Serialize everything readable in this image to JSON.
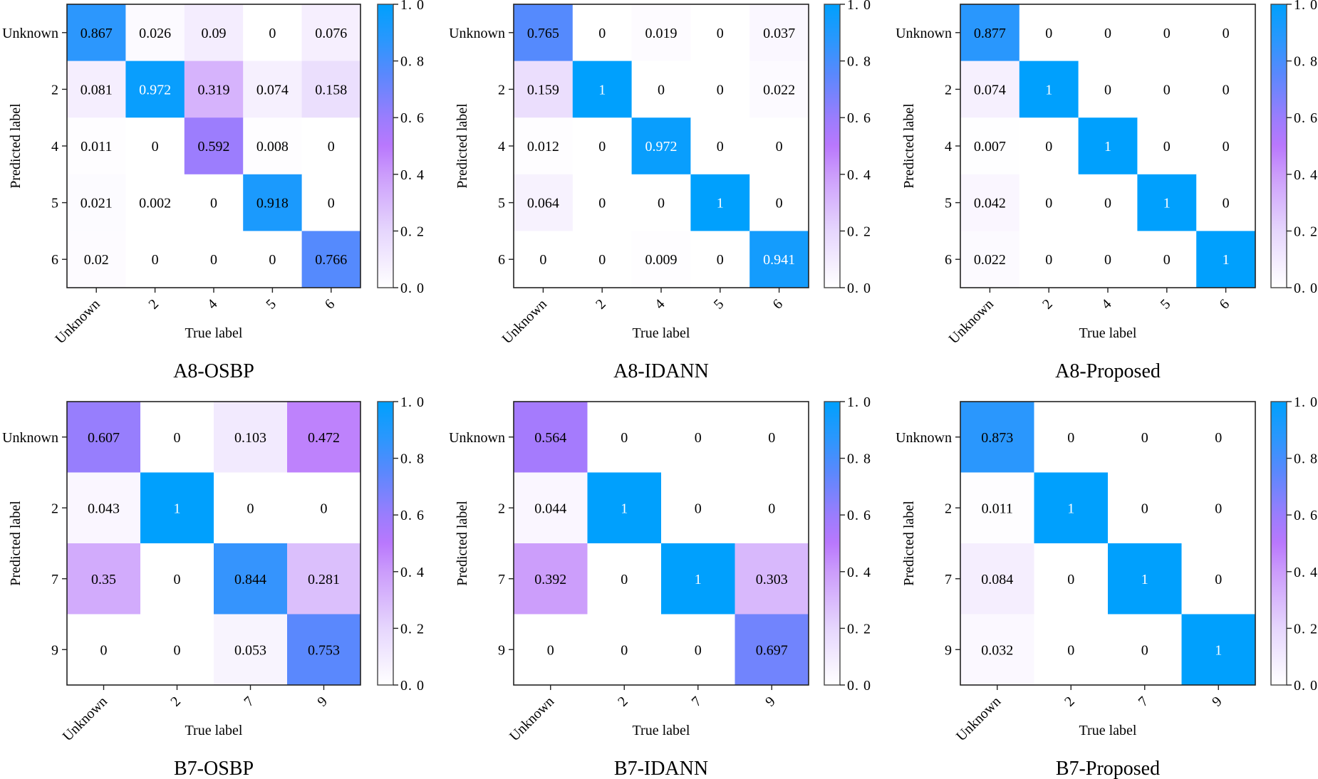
{
  "figure": {
    "colormap": {
      "stops": [
        {
          "v": 0.0,
          "color": "#ffffff"
        },
        {
          "v": 0.2,
          "color": "#e6d6fd"
        },
        {
          "v": 0.4,
          "color": "#cb9cfb"
        },
        {
          "v": 0.5,
          "color": "#b978fd"
        },
        {
          "v": 0.6,
          "color": "#9a7dfd"
        },
        {
          "v": 0.75,
          "color": "#5b88fd"
        },
        {
          "v": 0.87,
          "color": "#2b97fd"
        },
        {
          "v": 1.0,
          "color": "#00a0fd"
        }
      ],
      "light_text_threshold": 0.93,
      "light_text_color": "#ffffff",
      "dark_text_color": "#000000"
    }
  },
  "chart_data": [
    {
      "type": "heatmap",
      "title": "A8-OSBP",
      "xlabel": "True label",
      "ylabel": "Predicted label",
      "x_ticks": [
        "Unknown",
        "2",
        "4",
        "5",
        "6"
      ],
      "y_ticks": [
        "Unknown",
        "2",
        "4",
        "5",
        "6"
      ],
      "values": [
        [
          0.867,
          0.026,
          0.09,
          0,
          0.076
        ],
        [
          0.081,
          0.972,
          0.319,
          0.074,
          0.158
        ],
        [
          0.011,
          0,
          0.592,
          0.008,
          0
        ],
        [
          0.021,
          0.002,
          0,
          0.918,
          0
        ],
        [
          0.02,
          0,
          0,
          0,
          0.766
        ]
      ],
      "labels": [
        [
          "0.867",
          "0.026",
          "0.09",
          "0",
          "0.076"
        ],
        [
          "0.081",
          "0.972",
          "0.319",
          "0.074",
          "0.158"
        ],
        [
          "0.011",
          "0",
          "0.592",
          "0.008",
          "0"
        ],
        [
          "0.021",
          "0.002",
          "0",
          "0.918",
          "0"
        ],
        [
          "0.02",
          "0",
          "0",
          "0",
          "0.766"
        ]
      ],
      "colorbar": {
        "range": [
          0,
          1
        ],
        "ticks": [
          "0.0",
          "0.2",
          "0.4",
          "0.6",
          "0.8",
          "1.0"
        ]
      }
    },
    {
      "type": "heatmap",
      "title": "A8-IDANN",
      "xlabel": "True label",
      "ylabel": "Predicted label",
      "x_ticks": [
        "Unknown",
        "2",
        "4",
        "5",
        "6"
      ],
      "y_ticks": [
        "Unknown",
        "2",
        "4",
        "5",
        "6"
      ],
      "values": [
        [
          0.765,
          0,
          0.019,
          0,
          0.037
        ],
        [
          0.159,
          1,
          0,
          0,
          0.022
        ],
        [
          0.012,
          0,
          0.972,
          0,
          0
        ],
        [
          0.064,
          0,
          0,
          1,
          0
        ],
        [
          0,
          0,
          0.009,
          0,
          0.941
        ]
      ],
      "labels": [
        [
          "0.765",
          "0",
          "0.019",
          "0",
          "0.037"
        ],
        [
          "0.159",
          "1",
          "0",
          "0",
          "0.022"
        ],
        [
          "0.012",
          "0",
          "0.972",
          "0",
          "0"
        ],
        [
          "0.064",
          "0",
          "0",
          "1",
          "0"
        ],
        [
          "0",
          "0",
          "0.009",
          "0",
          "0.941"
        ]
      ],
      "colorbar": {
        "range": [
          0,
          1
        ],
        "ticks": [
          "0.0",
          "0.2",
          "0.4",
          "0.6",
          "0.8",
          "1.0"
        ]
      }
    },
    {
      "type": "heatmap",
      "title": "A8-Proposed",
      "xlabel": "True label",
      "ylabel": "Predicted label",
      "x_ticks": [
        "Unknown",
        "2",
        "4",
        "5",
        "6"
      ],
      "y_ticks": [
        "Unknown",
        "2",
        "4",
        "5",
        "6"
      ],
      "values": [
        [
          0.877,
          0,
          0,
          0,
          0
        ],
        [
          0.074,
          1,
          0,
          0,
          0
        ],
        [
          0.007,
          0,
          1,
          0,
          0
        ],
        [
          0.042,
          0,
          0,
          1,
          0
        ],
        [
          0.022,
          0,
          0,
          0,
          1
        ]
      ],
      "labels": [
        [
          "0.877",
          "0",
          "0",
          "0",
          "0"
        ],
        [
          "0.074",
          "1",
          "0",
          "0",
          "0"
        ],
        [
          "0.007",
          "0",
          "1",
          "0",
          "0"
        ],
        [
          "0.042",
          "0",
          "0",
          "1",
          "0"
        ],
        [
          "0.022",
          "0",
          "0",
          "0",
          "1"
        ]
      ],
      "colorbar": {
        "range": [
          0,
          1
        ],
        "ticks": [
          "0.0",
          "0.2",
          "0.4",
          "0.6",
          "0.8",
          "1.0"
        ]
      }
    },
    {
      "type": "heatmap",
      "title": "B7-OSBP",
      "xlabel": "True label",
      "ylabel": "Predicted label",
      "x_ticks": [
        "Unknown",
        "2",
        "7",
        "9"
      ],
      "y_ticks": [
        "Unknown",
        "2",
        "7",
        "9"
      ],
      "values": [
        [
          0.607,
          0,
          0.103,
          0.472
        ],
        [
          0.043,
          1,
          0,
          0
        ],
        [
          0.35,
          0,
          0.844,
          0.281
        ],
        [
          0,
          0,
          0.053,
          0.753
        ]
      ],
      "labels": [
        [
          "0.607",
          "0",
          "0.103",
          "0.472"
        ],
        [
          "0.043",
          "1",
          "0",
          "0"
        ],
        [
          "0.35",
          "0",
          "0.844",
          "0.281"
        ],
        [
          "0",
          "0",
          "0.053",
          "0.753"
        ]
      ],
      "colorbar": {
        "range": [
          0,
          1
        ],
        "ticks": [
          "0.0",
          "0.2",
          "0.4",
          "0.6",
          "0.8",
          "1.0"
        ]
      }
    },
    {
      "type": "heatmap",
      "title": "B7-IDANN",
      "xlabel": "True label",
      "ylabel": "Predicted label",
      "x_ticks": [
        "Unknown",
        "2",
        "7",
        "9"
      ],
      "y_ticks": [
        "Unknown",
        "2",
        "7",
        "9"
      ],
      "values": [
        [
          0.564,
          0,
          0,
          0
        ],
        [
          0.044,
          1,
          0,
          0
        ],
        [
          0.392,
          0,
          1,
          0.303
        ],
        [
          0,
          0,
          0,
          0.697
        ]
      ],
      "labels": [
        [
          "0.564",
          "0",
          "0",
          "0"
        ],
        [
          "0.044",
          "1",
          "0",
          "0"
        ],
        [
          "0.392",
          "0",
          "1",
          "0.303"
        ],
        [
          "0",
          "0",
          "0",
          "0.697"
        ]
      ],
      "colorbar": {
        "range": [
          0,
          1
        ],
        "ticks": [
          "0.0",
          "0.2",
          "0.4",
          "0.6",
          "0.8",
          "1.0"
        ]
      }
    },
    {
      "type": "heatmap",
      "title": "B7-Proposed",
      "xlabel": "True label",
      "ylabel": "Predicted label",
      "x_ticks": [
        "Unknown",
        "2",
        "7",
        "9"
      ],
      "y_ticks": [
        "Unknown",
        "2",
        "7",
        "9"
      ],
      "values": [
        [
          0.873,
          0,
          0,
          0
        ],
        [
          0.011,
          1,
          0,
          0
        ],
        [
          0.084,
          0,
          1,
          0
        ],
        [
          0.032,
          0,
          0,
          1
        ]
      ],
      "labels": [
        [
          "0.873",
          "0",
          "0",
          "0"
        ],
        [
          "0.011",
          "1",
          "0",
          "0"
        ],
        [
          "0.084",
          "0",
          "1",
          "0"
        ],
        [
          "0.032",
          "0",
          "0",
          "1"
        ]
      ],
      "colorbar": {
        "range": [
          0,
          1
        ],
        "ticks": [
          "0.0",
          "0.2",
          "0.4",
          "0.6",
          "0.8",
          "1.0"
        ]
      }
    }
  ]
}
